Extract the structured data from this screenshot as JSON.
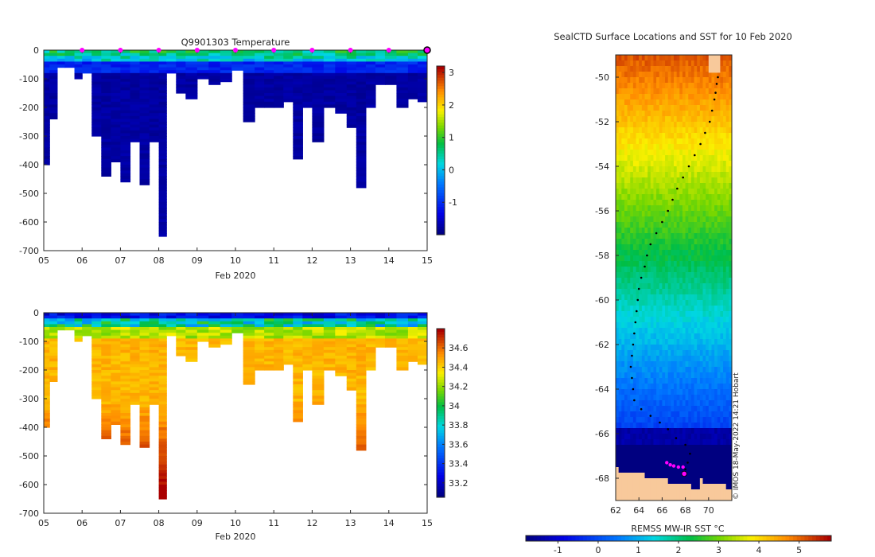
{
  "chart_data": [
    {
      "type": "heatmap",
      "title": "Q9901303  Temperature",
      "xlabel": "Feb 2020",
      "ylabel": "",
      "x_ticks": [
        "05",
        "06",
        "07",
        "08",
        "09",
        "10",
        "11",
        "12",
        "13",
        "14",
        "15"
      ],
      "x_range": [
        5,
        15
      ],
      "y_ticks": [
        0,
        -100,
        -200,
        -300,
        -400,
        -500,
        -600,
        -700
      ],
      "y_range": [
        -700,
        0
      ],
      "colorbar": {
        "ticks": [
          -1,
          0,
          1,
          2,
          3
        ],
        "range": [
          -2,
          3.2
        ]
      },
      "surfacing_markers_day": [
        6,
        7,
        8,
        9,
        10,
        11,
        12,
        13,
        14
      ],
      "current_position_marker_day": 15,
      "profile_start_days": [
        5.0,
        5.15,
        5.35,
        5.55,
        5.8,
        6.0,
        6.25,
        6.5,
        6.75,
        7.0,
        7.25,
        7.5,
        7.75,
        8.0,
        8.2,
        8.45,
        8.7,
        9.0,
        9.3,
        9.6,
        9.9,
        10.2,
        10.5,
        10.75,
        11.0,
        11.25,
        11.5,
        11.75,
        12.0,
        12.3,
        12.6,
        12.9,
        13.15,
        13.4,
        13.65,
        13.9,
        14.2,
        14.5,
        14.75
      ],
      "profile_max_depth_m": [
        -395,
        -235,
        -55,
        -60,
        -95,
        -80,
        -300,
        -440,
        -390,
        -460,
        -320,
        -465,
        -320,
        -645,
        -80,
        -150,
        -170,
        -95,
        -120,
        -110,
        -70,
        -250,
        -200,
        -200,
        -200,
        -180,
        -375,
        -200,
        -320,
        -200,
        -220,
        -270,
        -480,
        -200,
        -120,
        -120,
        -200,
        -170,
        -180
      ]
    },
    {
      "type": "heatmap",
      "title": "",
      "xlabel": "Feb 2020",
      "ylabel": "",
      "x_ticks": [
        "05",
        "06",
        "07",
        "08",
        "09",
        "10",
        "11",
        "12",
        "13",
        "14",
        "15"
      ],
      "x_range": [
        5,
        15
      ],
      "y_ticks": [
        0,
        -100,
        -200,
        -300,
        -400,
        -500,
        -600,
        -700
      ],
      "y_range": [
        -700,
        0
      ],
      "colorbar": {
        "ticks": [
          33.2,
          33.4,
          33.6,
          33.8,
          34,
          34.2,
          34.4,
          34.6
        ],
        "tick_labels": [
          "33.2",
          "33.4",
          "33.6",
          "33.8",
          "34",
          "34.2",
          "34.4",
          "34.6"
        ],
        "range": [
          33.05,
          34.8
        ]
      },
      "profile_start_days": [
        5.0,
        5.15,
        5.35,
        5.55,
        5.8,
        6.0,
        6.25,
        6.5,
        6.75,
        7.0,
        7.25,
        7.5,
        7.75,
        8.0,
        8.2,
        8.45,
        8.7,
        9.0,
        9.3,
        9.6,
        9.9,
        10.2,
        10.5,
        10.75,
        11.0,
        11.25,
        11.5,
        11.75,
        12.0,
        12.3,
        12.6,
        12.9,
        13.15,
        13.4,
        13.65,
        13.9,
        14.2,
        14.5,
        14.75
      ],
      "profile_max_depth_m": [
        -395,
        -235,
        -55,
        -60,
        -95,
        -80,
        -300,
        -440,
        -390,
        -460,
        -320,
        -465,
        -320,
        -645,
        -80,
        -150,
        -170,
        -95,
        -120,
        -110,
        -70,
        -250,
        -200,
        -200,
        -200,
        -180,
        -375,
        -200,
        -320,
        -200,
        -220,
        -270,
        -480,
        -200,
        -120,
        -120,
        -200,
        -170,
        -180
      ]
    },
    {
      "type": "heatmap",
      "title": "SealCTD Surface Locations and SST for 10 Feb 2020",
      "xlabel": "",
      "ylabel": "",
      "x_ticks": [
        62,
        64,
        66,
        68,
        70
      ],
      "x_range": [
        62,
        72
      ],
      "y_ticks": [
        -50,
        -52,
        -54,
        -56,
        -58,
        -60,
        -62,
        -64,
        -66,
        -68
      ],
      "y_range": [
        -69,
        -49
      ],
      "colorbar": {
        "label": "REMSS MW-IR SST °C",
        "ticks": [
          -1,
          0,
          1,
          2,
          3,
          4,
          5
        ],
        "range": [
          -1.8,
          5.8
        ]
      },
      "credit": "© IMOS 18-May-2022 14:21 Hobart",
      "track_points": [
        [
          70.8,
          -50.0
        ],
        [
          70.7,
          -50.3
        ],
        [
          70.6,
          -50.7
        ],
        [
          70.5,
          -51.0
        ],
        [
          70.3,
          -51.5
        ],
        [
          70.1,
          -52.0
        ],
        [
          69.7,
          -52.5
        ],
        [
          69.3,
          -53.0
        ],
        [
          68.8,
          -53.5
        ],
        [
          68.3,
          -54.0
        ],
        [
          67.8,
          -54.5
        ],
        [
          67.3,
          -55.0
        ],
        [
          66.9,
          -55.5
        ],
        [
          66.5,
          -56.0
        ],
        [
          66.0,
          -56.5
        ],
        [
          65.5,
          -57.0
        ],
        [
          65.0,
          -57.5
        ],
        [
          64.7,
          -58.0
        ],
        [
          64.5,
          -58.5
        ],
        [
          64.2,
          -59.0
        ],
        [
          64.0,
          -59.5
        ],
        [
          63.9,
          -60.0
        ],
        [
          63.8,
          -60.5
        ],
        [
          63.7,
          -61.0
        ],
        [
          63.6,
          -61.5
        ],
        [
          63.5,
          -62.0
        ],
        [
          63.4,
          -62.5
        ],
        [
          63.3,
          -63.0
        ],
        [
          63.4,
          -63.5
        ],
        [
          63.5,
          -64.0
        ],
        [
          63.6,
          -64.5
        ],
        [
          64.2,
          -64.9
        ],
        [
          65.0,
          -65.2
        ],
        [
          65.8,
          -65.5
        ],
        [
          66.5,
          -65.8
        ],
        [
          67.2,
          -66.2
        ],
        [
          68.0,
          -66.5
        ],
        [
          68.4,
          -66.9
        ],
        [
          68.2,
          -67.3
        ],
        [
          68.0,
          -67.6
        ]
      ],
      "seal_surface_points": [
        [
          66.4,
          -67.3
        ],
        [
          66.7,
          -67.4
        ],
        [
          67.0,
          -67.45
        ],
        [
          67.4,
          -67.5
        ],
        [
          67.8,
          -67.5
        ]
      ],
      "current_position": [
        67.9,
        -67.8
      ]
    }
  ]
}
